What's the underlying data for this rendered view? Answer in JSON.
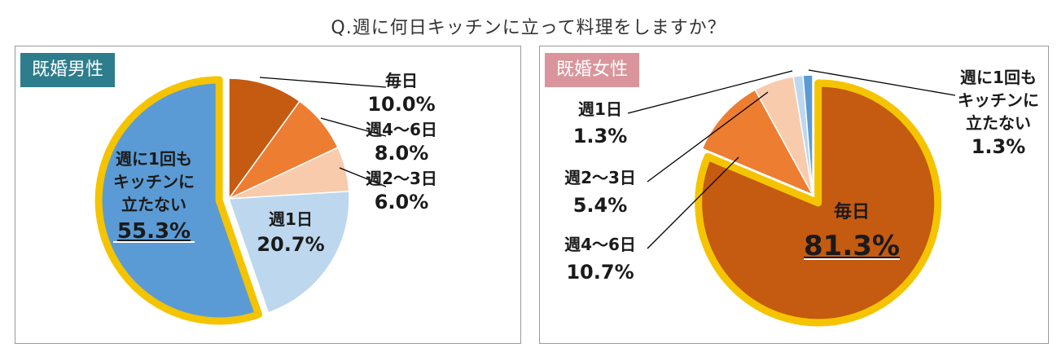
{
  "title": "Q.週に何日キッチンに立って料理をしますか？",
  "chart_data": [
    {
      "type": "pie",
      "badge": "既婚男性",
      "badge_color": "#2e7d8c",
      "highlight_color": "#f5c400",
      "slices": [
        {
          "name": "毎日",
          "value": 10.0,
          "value_label": "10.0%",
          "color": "#c55a11"
        },
        {
          "name": "週4～6日",
          "value": 8.0,
          "value_label": "8.0%",
          "color": "#ed7d31"
        },
        {
          "name": "週2～3日",
          "value": 6.0,
          "value_label": "6.0%",
          "color": "#f8cbad"
        },
        {
          "name": "週1日",
          "value": 20.7,
          "value_label": "20.7%",
          "color": "#bdd7ee"
        },
        {
          "name_lines": [
            "週に1回も",
            "キッチンに",
            "立たない"
          ],
          "value": 55.3,
          "value_label": "55.3%",
          "color": "#5b9bd5",
          "highlight": true
        }
      ]
    },
    {
      "type": "pie",
      "badge": "既婚女性",
      "badge_color": "#d9959b",
      "highlight_color": "#f5c400",
      "slices": [
        {
          "name": "毎日",
          "value": 81.3,
          "value_label": "81.3%",
          "color": "#c55a11",
          "highlight": true
        },
        {
          "name": "週4～6日",
          "value": 10.7,
          "value_label": "10.7%",
          "color": "#ed7d31"
        },
        {
          "name": "週2～3日",
          "value": 5.4,
          "value_label": "5.4%",
          "color": "#f8cbad"
        },
        {
          "name": "週1日",
          "value": 1.3,
          "value_label": "1.3%",
          "color": "#bdd7ee"
        },
        {
          "name_lines": [
            "週に1回も",
            "キッチンに",
            "立たない"
          ],
          "value": 1.3,
          "value_label": "1.3%",
          "color": "#5b9bd5"
        }
      ]
    }
  ]
}
